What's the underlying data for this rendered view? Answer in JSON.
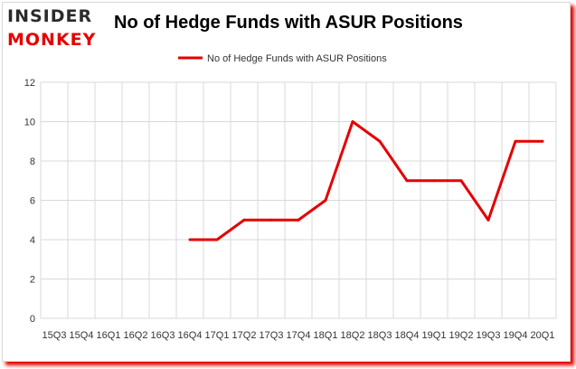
{
  "logo": {
    "line1": "INSIDER",
    "line2": "MONKEY"
  },
  "chart_data": {
    "type": "line",
    "title": "No of Hedge Funds with ASUR Positions",
    "legend": "top-center",
    "grid": true,
    "color": "#e40000",
    "ylim": [
      0,
      12
    ],
    "y_ticks": [
      "0",
      "2",
      "4",
      "6",
      "8",
      "10",
      "12"
    ],
    "categories": [
      "15Q3",
      "15Q4",
      "16Q1",
      "16Q2",
      "16Q3",
      "16Q4",
      "17Q1",
      "17Q2",
      "17Q3",
      "17Q4",
      "18Q1",
      "18Q2",
      "18Q3",
      "18Q4",
      "19Q1",
      "19Q2",
      "19Q3",
      "19Q4",
      "20Q1"
    ],
    "series": [
      {
        "name": "No of Hedge Funds with ASUR Positions",
        "values": [
          null,
          null,
          null,
          null,
          null,
          4,
          4,
          5,
          5,
          5,
          6,
          10,
          9,
          7,
          7,
          7,
          5,
          9,
          9
        ]
      }
    ]
  }
}
